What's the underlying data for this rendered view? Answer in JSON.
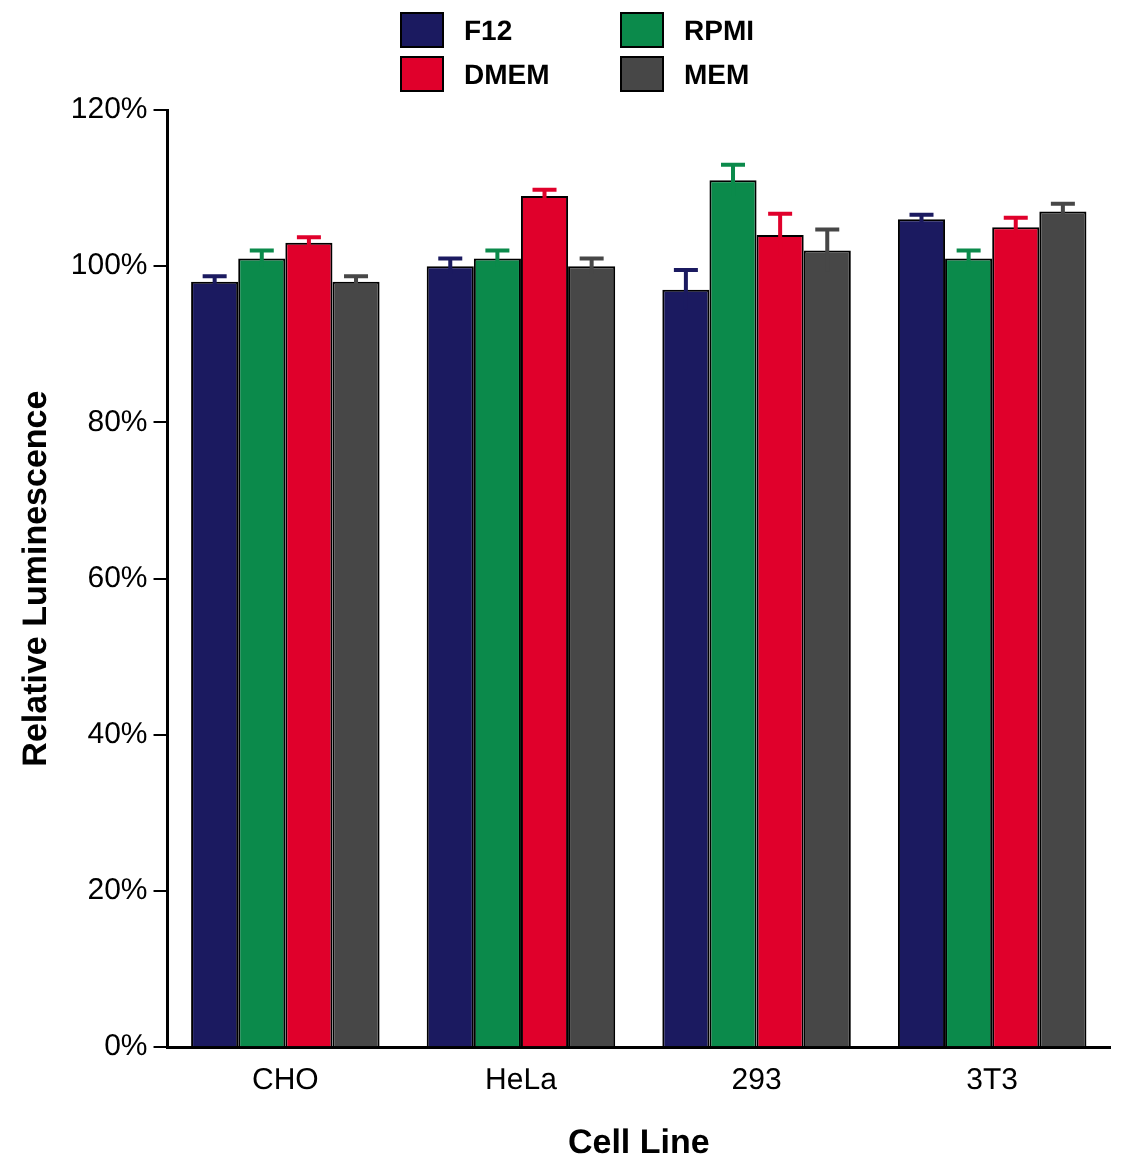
{
  "chart_data": {
    "type": "bar",
    "xlabel": "Cell Line",
    "ylabel": "Relative Luminescence",
    "categories": [
      "CHO",
      "HeLa",
      "293",
      "3T3"
    ],
    "series": [
      {
        "name": "F12",
        "color": "#1b1a60",
        "values": [
          98,
          100,
          97,
          106
        ],
        "errors": [
          0.7,
          1,
          2.5,
          0.6
        ]
      },
      {
        "name": "RPMI",
        "color": "#0b8a4b",
        "values": [
          101,
          101,
          111,
          101
        ],
        "errors": [
          1,
          1,
          2,
          1
        ]
      },
      {
        "name": "DMEM",
        "color": "#e0002b",
        "values": [
          103,
          109,
          104,
          105
        ],
        "errors": [
          0.7,
          0.8,
          2.7,
          1.2
        ]
      },
      {
        "name": "MEM",
        "color": "#474747",
        "values": [
          98,
          100,
          102,
          107
        ],
        "errors": [
          0.7,
          1,
          2.7,
          1
        ]
      }
    ],
    "ylim": [
      0,
      120
    ],
    "yticks": [
      {
        "value": 0,
        "label": "0%"
      },
      {
        "value": 20,
        "label": "20%"
      },
      {
        "value": 40,
        "label": "40%"
      },
      {
        "value": 60,
        "label": "60%"
      },
      {
        "value": 80,
        "label": "80%"
      },
      {
        "value": 100,
        "label": "100%"
      },
      {
        "value": 120,
        "label": "120%"
      }
    ],
    "grid": false,
    "legend": "top"
  }
}
